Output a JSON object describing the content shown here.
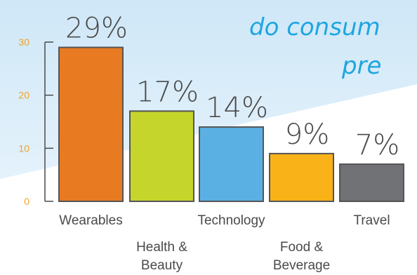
{
  "headline": {
    "line1": "do consum",
    "line2": "pre"
  },
  "colors": {
    "background_top": "#d6ebf8",
    "background_bottom": "#ffffff",
    "axis": "#4a4a4a",
    "tick_text": "#f0a32a",
    "headline": "#1ea6e0",
    "bar_outline": "#555555"
  },
  "chart_data": {
    "type": "bar",
    "title": "",
    "xlabel": "",
    "ylabel": "",
    "ylim": [
      0,
      30
    ],
    "yticks": [
      "0",
      "10",
      "20",
      "30"
    ],
    "categories": [
      {
        "lines": [
          "Wearables"
        ],
        "row": 1
      },
      {
        "lines": [
          "Health &",
          "Beauty"
        ],
        "row": 2
      },
      {
        "lines": [
          "Technology"
        ],
        "row": 1
      },
      {
        "lines": [
          "Food &",
          "Beverage"
        ],
        "row": 2
      },
      {
        "lines": [
          "Travel"
        ],
        "row": 1
      }
    ],
    "values": [
      29,
      17,
      14,
      9,
      7
    ],
    "data_labels": [
      "29%",
      "17%",
      "14%",
      "9%",
      "7%"
    ],
    "bar_colors": [
      "#e87a22",
      "#c5d52c",
      "#5ab0e3",
      "#f9b218",
      "#707275"
    ],
    "grid": false,
    "legend": "none"
  }
}
